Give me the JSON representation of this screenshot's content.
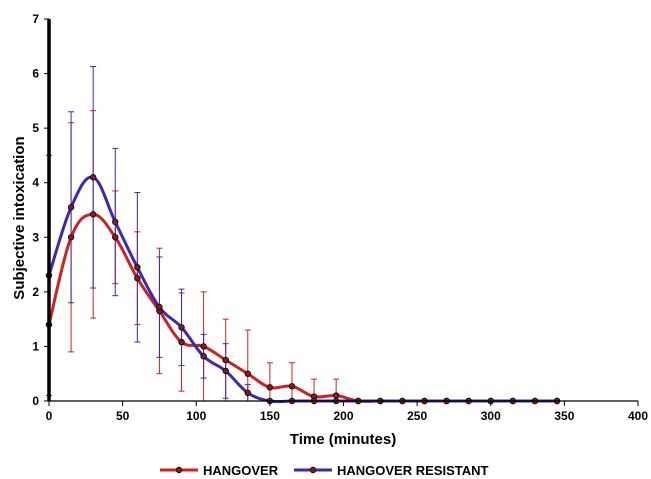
{
  "chart_data": {
    "type": "line",
    "xlabel": "Time (minutes)",
    "ylabel": "Subjective intoxication",
    "xlim": [
      0,
      400
    ],
    "ylim": [
      0,
      7
    ],
    "xticks": [
      0,
      50,
      100,
      150,
      200,
      250,
      300,
      350,
      400
    ],
    "yticks": [
      0,
      1,
      2,
      3,
      4,
      5,
      6,
      7
    ],
    "grid": false,
    "legend_position": "bottom",
    "series": [
      {
        "name": "HANGOVER",
        "color": "#cc2222",
        "x": [
          0,
          15,
          30,
          45,
          60,
          75,
          90,
          105,
          120,
          135,
          150,
          165,
          180,
          195,
          210,
          225,
          240,
          255,
          270,
          285,
          300,
          315,
          330,
          345
        ],
        "y": [
          1.4,
          3.0,
          3.42,
          3.0,
          2.25,
          1.65,
          1.08,
          1.0,
          0.75,
          0.5,
          0.25,
          0.27,
          0.08,
          0.1,
          0,
          0,
          0,
          0,
          0,
          0,
          0,
          0,
          0,
          0
        ],
        "err": [
          0,
          2.1,
          1.9,
          0.85,
          0.85,
          1.15,
          0.9,
          1.0,
          0.75,
          0.8,
          0.45,
          0.43,
          0.32,
          0.3,
          0,
          0,
          0,
          0,
          0,
          0,
          0,
          0,
          0,
          0
        ]
      },
      {
        "name": "HANGOVER RESISTANT",
        "color": "#3a2ab0",
        "x": [
          0,
          15,
          30,
          45,
          60,
          75,
          90,
          105,
          120,
          135,
          150,
          165,
          180,
          195,
          210,
          225,
          240,
          255,
          270,
          285,
          300,
          315,
          330,
          345
        ],
        "y": [
          2.3,
          3.55,
          4.1,
          3.28,
          2.45,
          1.72,
          1.35,
          0.82,
          0.55,
          0.15,
          0,
          0,
          0,
          0,
          0,
          0,
          0,
          0,
          0,
          0,
          0,
          0,
          0,
          0
        ],
        "err": [
          2.2,
          1.75,
          2.03,
          1.35,
          1.37,
          0.92,
          0.7,
          0.4,
          0.5,
          0.15,
          0,
          0,
          0,
          0,
          0,
          0,
          0,
          0,
          0,
          0,
          0,
          0,
          0,
          0
        ]
      }
    ]
  }
}
